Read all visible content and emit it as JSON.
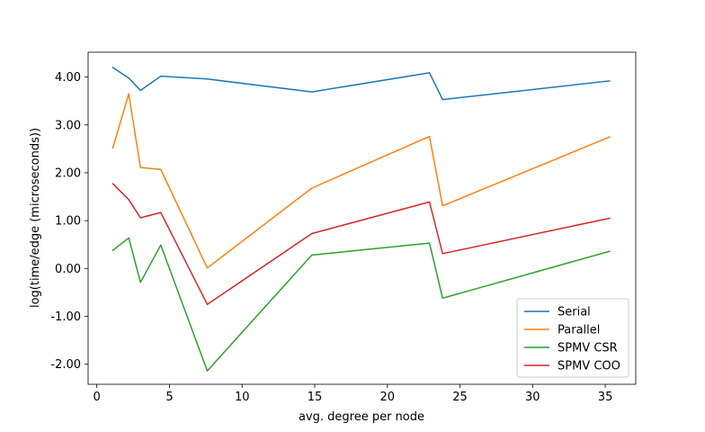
{
  "chart_data": {
    "type": "line",
    "xlabel": "avg. degree per node",
    "ylabel": "log(time/edge (microseconds))",
    "xlim": [
      -0.6,
      37.1
    ],
    "ylim": [
      -2.42,
      4.52
    ],
    "xticks": [
      0,
      5,
      10,
      15,
      20,
      25,
      30,
      35
    ],
    "xtick_labels": [
      "0",
      "5",
      "10",
      "15",
      "20",
      "25",
      "30",
      "35"
    ],
    "yticks": [
      -2,
      -1,
      0,
      1,
      2,
      3,
      4
    ],
    "ytick_labels": [
      "-2.00",
      "-1.00",
      "0.00",
      "1.00",
      "2.00",
      "3.00",
      "4.00"
    ],
    "grid": false,
    "legend_position": "lower right",
    "x": [
      1.1,
      2.2,
      3.0,
      4.4,
      7.6,
      14.8,
      22.9,
      23.8,
      35.3
    ],
    "series": [
      {
        "name": "Serial",
        "color": "#1f77b4",
        "values": [
          4.2,
          3.98,
          3.72,
          4.02,
          3.96,
          3.69,
          4.09,
          3.53,
          3.92
        ]
      },
      {
        "name": "Parallel",
        "color": "#ff7f0e",
        "values": [
          2.52,
          3.65,
          2.11,
          2.07,
          0.01,
          1.68,
          2.76,
          1.31,
          2.75
        ]
      },
      {
        "name": "SPMV CSR",
        "color": "#2ca02c",
        "values": [
          0.38,
          0.64,
          -0.29,
          0.49,
          -2.14,
          0.28,
          0.53,
          -0.62,
          0.36
        ]
      },
      {
        "name": "SPMV COO",
        "color": "#d62728",
        "values": [
          1.77,
          1.44,
          1.06,
          1.17,
          -0.75,
          0.73,
          1.39,
          0.31,
          1.05
        ]
      }
    ]
  }
}
